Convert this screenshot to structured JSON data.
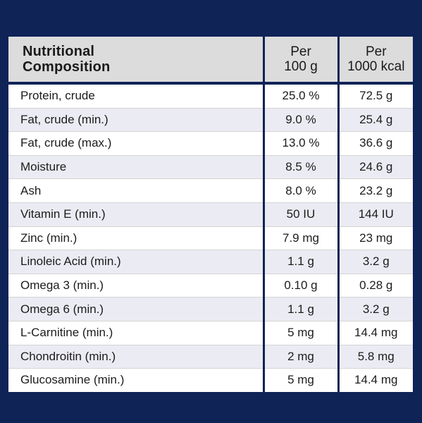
{
  "table": {
    "headers": {
      "nutrient_line1": "Nutritional",
      "nutrient_line2": "Composition",
      "per100_line1": "Per",
      "per100_line2": "100 g",
      "per1000_line1": "Per",
      "per1000_line2": "1000 kcal"
    },
    "rows": [
      {
        "name": "Protein, crude",
        "per100": "25.0 %",
        "per1000": "72.5 g"
      },
      {
        "name": "Fat, crude (min.)",
        "per100": "9.0 %",
        "per1000": "25.4 g"
      },
      {
        "name": "Fat, crude (max.)",
        "per100": "13.0 %",
        "per1000": "36.6 g"
      },
      {
        "name": "Moisture",
        "per100": "8.5 %",
        "per1000": "24.6 g"
      },
      {
        "name": "Ash",
        "per100": "8.0 %",
        "per1000": "23.2 g"
      },
      {
        "name": "Vitamin E (min.)",
        "per100": "50 IU",
        "per1000": "144 IU"
      },
      {
        "name": "Zinc (min.)",
        "per100": "7.9 mg",
        "per1000": "23 mg"
      },
      {
        "name": "Linoleic Acid (min.)",
        "per100": "1.1 g",
        "per1000": "3.2 g"
      },
      {
        "name": "Omega 3 (min.)",
        "per100": "0.10 g",
        "per1000": "0.28 g"
      },
      {
        "name": "Omega 6 (min.)",
        "per100": "1.1 g",
        "per1000": "3.2 g"
      },
      {
        "name": "L-Carnitine (min.)",
        "per100": "5 mg",
        "per1000": "14.4 mg"
      },
      {
        "name": "Chondroitin (min.)",
        "per100": "2 mg",
        "per1000": "5.8 mg"
      },
      {
        "name": "Glucosamine (min.)",
        "per100": "5 mg",
        "per1000": "14.4 mg"
      }
    ]
  },
  "colors": {
    "background": "#0f2357",
    "header_fill": "#dcdcdc",
    "row_odd": "#ffffff",
    "row_even": "#ebebf3"
  }
}
